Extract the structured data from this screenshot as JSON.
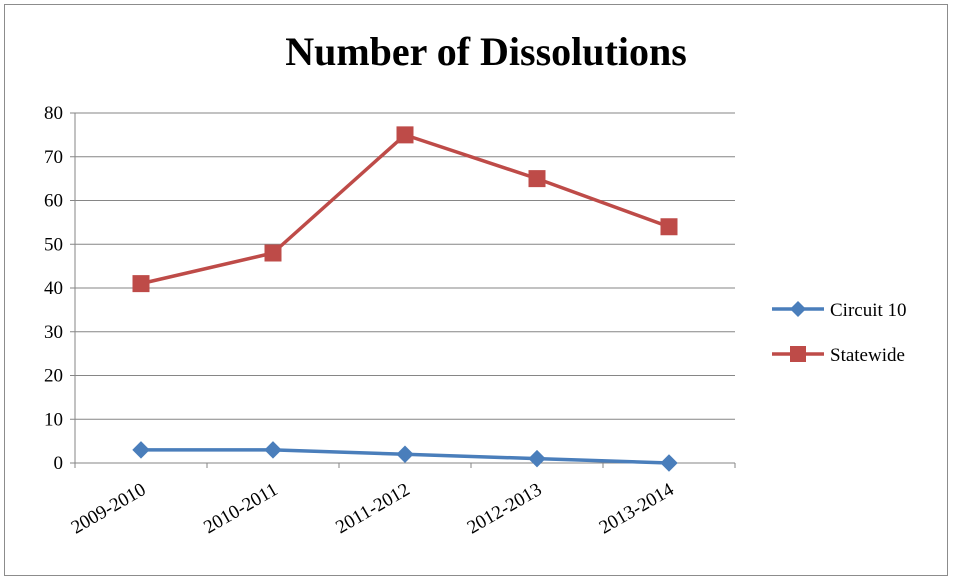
{
  "chart_data": {
    "type": "line",
    "title": "Number of Dissolutions",
    "xlabel": "",
    "ylabel": "",
    "categories": [
      "2009-2010",
      "2010-2011",
      "2011-2012",
      "2012-2013",
      "2013-2014"
    ],
    "y_ticks": [
      "0",
      "10",
      "20",
      "30",
      "40",
      "50",
      "60",
      "70",
      "80"
    ],
    "ylim": [
      0,
      80
    ],
    "grid": true,
    "legend_position": "right",
    "series": [
      {
        "name": "Circuit 10",
        "values": [
          3,
          3,
          2,
          1,
          0
        ],
        "color": "#4a7ebb",
        "marker": "diamond"
      },
      {
        "name": "Statewide",
        "values": [
          41,
          48,
          75,
          65,
          54
        ],
        "color": "#be4b48",
        "marker": "square"
      }
    ]
  }
}
